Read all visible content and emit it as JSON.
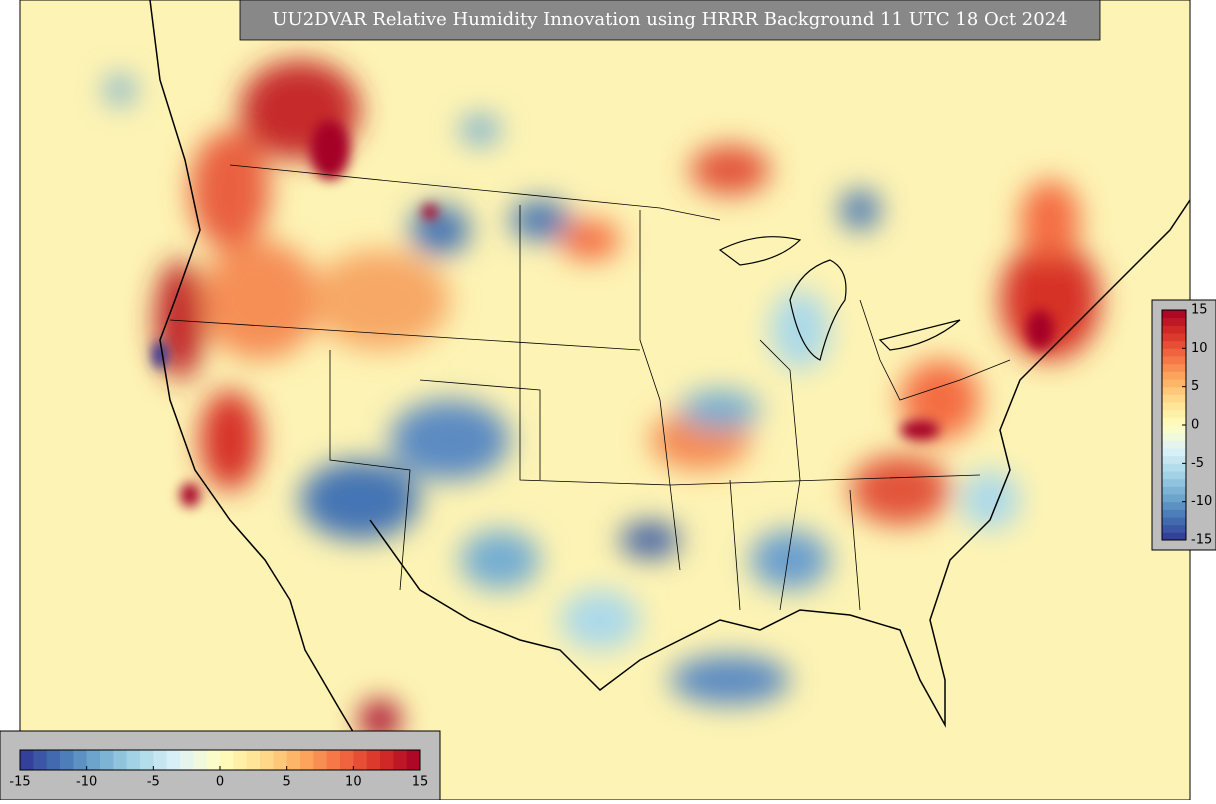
{
  "title": "UU2DVAR Relative Humidity Innovation using HRRR Background 11 UTC 18 Oct 2024",
  "colorbar": {
    "range": [
      -15,
      15
    ],
    "ticks": [
      -15,
      -10,
      -5,
      0,
      5,
      10,
      15
    ],
    "colors": [
      "#313695",
      "#4575b4",
      "#74add1",
      "#abd9e9",
      "#e0f3f8",
      "#ffffbf",
      "#fee090",
      "#fdae61",
      "#f46d43",
      "#d73027",
      "#a50026"
    ]
  }
}
